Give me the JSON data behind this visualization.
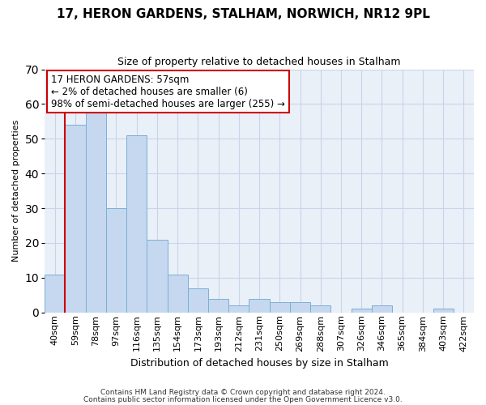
{
  "title1": "17, HERON GARDENS, STALHAM, NORWICH, NR12 9PL",
  "title2": "Size of property relative to detached houses in Stalham",
  "xlabel": "Distribution of detached houses by size in Stalham",
  "ylabel": "Number of detached properties",
  "categories": [
    "40sqm",
    "59sqm",
    "78sqm",
    "97sqm",
    "116sqm",
    "135sqm",
    "154sqm",
    "173sqm",
    "193sqm",
    "212sqm",
    "231sqm",
    "250sqm",
    "269sqm",
    "288sqm",
    "307sqm",
    "326sqm",
    "346sqm",
    "365sqm",
    "384sqm",
    "403sqm",
    "422sqm"
  ],
  "values": [
    11,
    54,
    59,
    30,
    51,
    21,
    11,
    7,
    4,
    2,
    4,
    3,
    3,
    2,
    0,
    1,
    2,
    0,
    0,
    1,
    0
  ],
  "bar_color": "#c5d8ef",
  "bar_edge_color": "#7bafd4",
  "grid_color": "#c8d4e8",
  "background_color": "#eaf0f8",
  "vline_color": "#cc0000",
  "annotation_text": "17 HERON GARDENS: 57sqm\n← 2% of detached houses are smaller (6)\n98% of semi-detached houses are larger (255) →",
  "annotation_box_color": "#cc0000",
  "ylim": [
    0,
    70
  ],
  "yticks": [
    0,
    10,
    20,
    30,
    40,
    50,
    60,
    70
  ],
  "footnote1": "Contains HM Land Registry data © Crown copyright and database right 2024.",
  "footnote2": "Contains public sector information licensed under the Open Government Licence v3.0.",
  "title1_fontsize": 11,
  "title2_fontsize": 9,
  "xlabel_fontsize": 9,
  "ylabel_fontsize": 8,
  "tick_fontsize": 8,
  "footnote_fontsize": 6.5,
  "ann_fontsize": 8.5
}
